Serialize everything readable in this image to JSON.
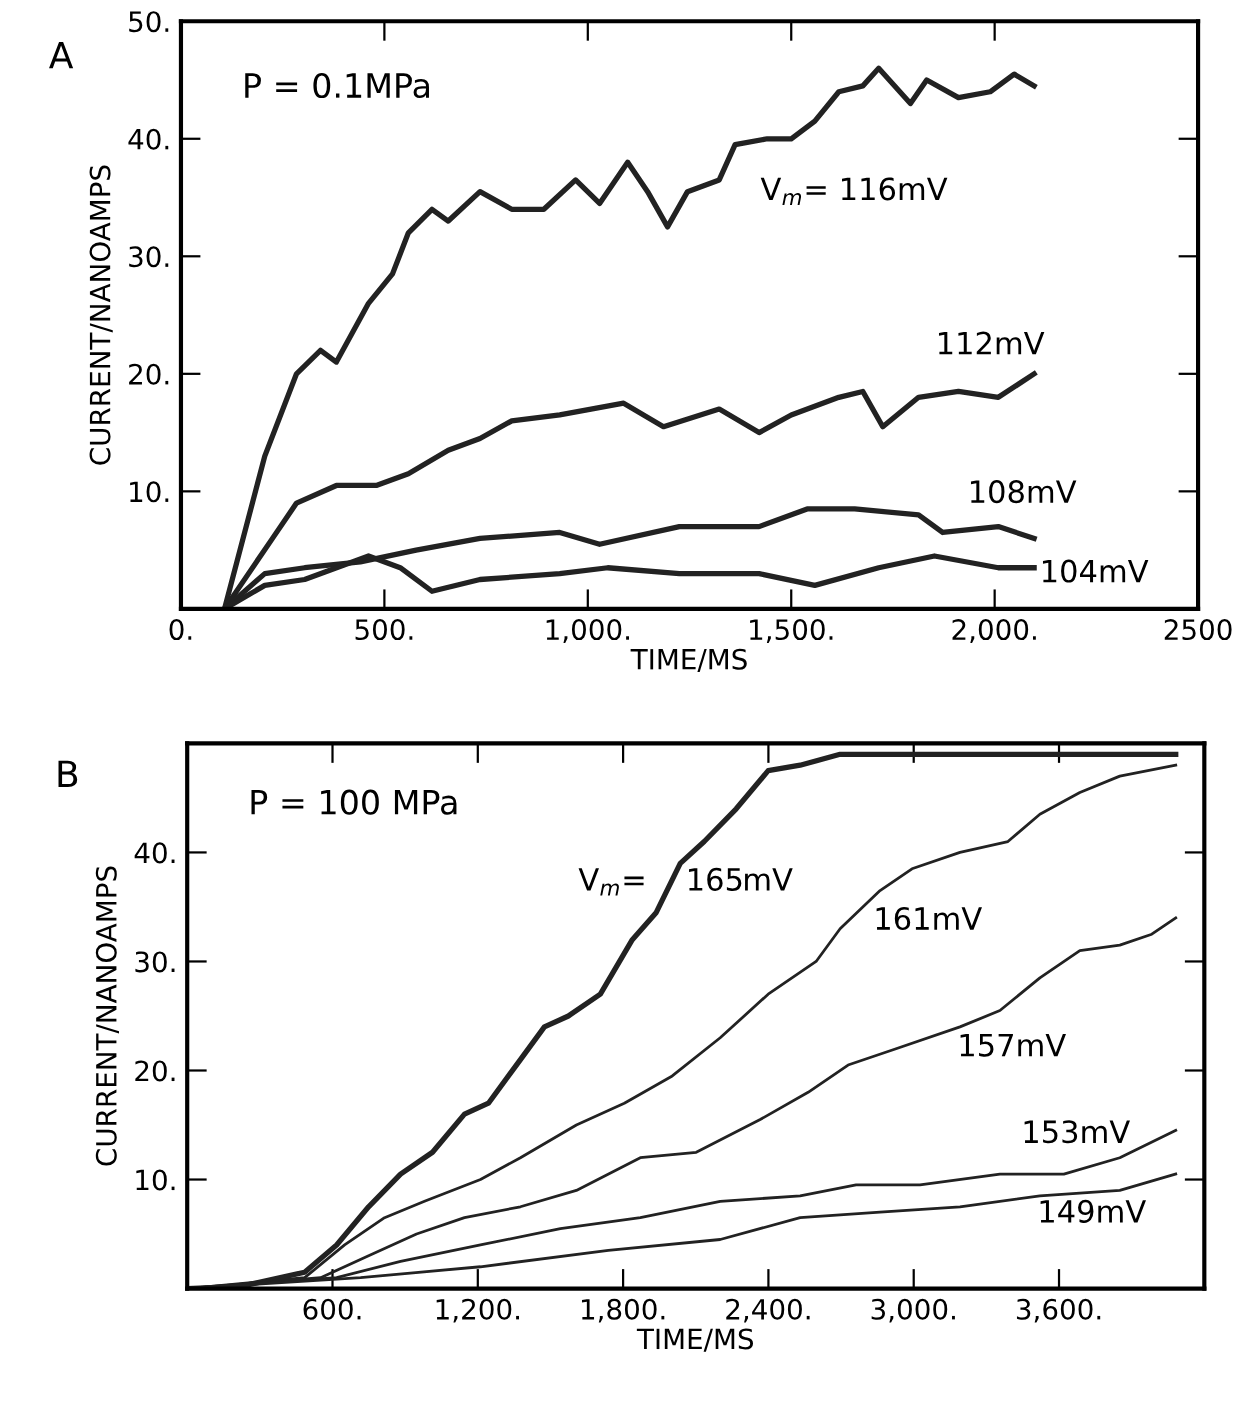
{
  "chart_data": [
    {
      "type": "line",
      "title": "A",
      "xlabel": "TIME/MS",
      "ylabel": "CURRENT/NANOAMPS",
      "xlim": [
        0,
        2500
      ],
      "ylim": [
        0,
        50
      ],
      "xticks": [
        {
          "value": 0,
          "label": "0."
        },
        {
          "value": 500,
          "label": "500."
        },
        {
          "value": 1000,
          "label": "1,000."
        },
        {
          "value": 1500,
          "label": "1,500."
        },
        {
          "value": 2000,
          "label": "2,000."
        },
        2500
      ],
      "yticks": [
        {
          "value": 0,
          "label": null
        },
        {
          "value": 10,
          "label": "10."
        },
        {
          "value": 20,
          "label": "20."
        },
        {
          "value": 30,
          "label": "30."
        },
        {
          "value": 40,
          "label": "40."
        },
        {
          "value": 50,
          "label": "50."
        }
      ],
      "grid": false,
      "legend": false,
      "line_style": "solid",
      "marker": "none",
      "annotations": [
        "P = 0.1MPa"
      ],
      "series": [
        {
          "name": "V$_{m}$= 116mV",
          "color": "#222222",
          "x": [
            107,
            206,
            284,
            343,
            382,
            461,
            520,
            559,
            617,
            657,
            735,
            813,
            892,
            970,
            1029,
            1098,
            1147,
            1196,
            1245,
            1323,
            1362,
            1441,
            1500,
            1558,
            1617,
            1676,
            1715,
            1793,
            1833,
            1911,
            1989,
            2048,
            2097
          ],
          "values": [
            0,
            13,
            20,
            22,
            21,
            26,
            28.5,
            32,
            34,
            33,
            35.5,
            34,
            34,
            36.5,
            34.5,
            38,
            35.5,
            32.5,
            35.5,
            36.5,
            39.5,
            40,
            40,
            41.5,
            44,
            44.5,
            46,
            43,
            45,
            43.5,
            44,
            45.5,
            44.5
          ]
        },
        {
          "name": "112mV",
          "color": "#222222",
          "x": [
            107,
            225,
            284,
            382,
            480,
            559,
            657,
            735,
            813,
            931,
            1088,
            1186,
            1323,
            1421,
            1500,
            1617,
            1676,
            1725,
            1813,
            1911,
            2009,
            2097
          ],
          "values": [
            0,
            6,
            9,
            10.5,
            10.5,
            11.5,
            13.5,
            14.5,
            16,
            16.5,
            17.5,
            15.5,
            17,
            15,
            16.5,
            18,
            18.5,
            15.5,
            18,
            18.5,
            18,
            20
          ]
        },
        {
          "name": "108mV",
          "color": "#222222",
          "x": [
            107,
            206,
            304,
            441,
            578,
            735,
            931,
            1029,
            1225,
            1421,
            1539,
            1656,
            1813,
            1872,
            2009,
            2097
          ],
          "values": [
            0,
            3,
            3.5,
            4,
            5,
            6,
            6.5,
            5.5,
            7,
            7,
            8.5,
            8.5,
            8,
            6.5,
            7,
            6
          ]
        },
        {
          "name": "104mV",
          "color": "#222222",
          "x": [
            107,
            206,
            304,
            461,
            539,
            617,
            735,
            931,
            1049,
            1225,
            1421,
            1558,
            1715,
            1852,
            2009,
            2097
          ],
          "values": [
            0,
            2,
            2.5,
            4.5,
            3.5,
            1.5,
            2.5,
            3,
            3.5,
            3,
            3,
            2,
            3.5,
            4.5,
            3.5,
            3.5
          ]
        }
      ]
    },
    {
      "type": "line",
      "title": "B",
      "xlabel": "TIME/MS",
      "ylabel": "CURRENT/NANOAMPS",
      "xlim": [
        0,
        4200
      ],
      "ylim": [
        0,
        50
      ],
      "xticks": [
        {
          "value": 600,
          "label": "600."
        },
        {
          "value": 1200,
          "label": "1,200."
        },
        {
          "value": 1800,
          "label": "1,800."
        },
        {
          "value": 2400,
          "label": "2,400."
        },
        {
          "value": 3000,
          "label": "3,000."
        },
        {
          "value": 3600,
          "label": "3,600."
        }
      ],
      "yticks": [
        {
          "value": 10,
          "label": "10."
        },
        {
          "value": 20,
          "label": "20."
        },
        {
          "value": 30,
          "label": "30."
        },
        {
          "value": 40,
          "label": "40."
        }
      ],
      "grid": false,
      "legend": false,
      "line_style": "solid",
      "marker": "none",
      "annotations": [
        "P = 100 MPa"
      ],
      "series": [
        {
          "name": "V$_{m}$=    165mV",
          "color": "#222222",
          "x": [
            0,
            221,
            485,
            617,
            749,
            881,
            1013,
            1145,
            1244,
            1376,
            1475,
            1574,
            1706,
            1838,
            1937,
            2036,
            2135,
            2267,
            2399,
            2531,
            2696,
            4082
          ],
          "values": [
            0,
            0.2,
            1.5,
            4,
            7.5,
            10.5,
            12.5,
            16,
            17,
            21,
            24,
            25,
            27,
            32,
            34.5,
            39,
            41,
            44,
            47.5,
            48,
            49,
            49
          ]
        },
        {
          "name": "161mV",
          "color": "#222222",
          "x": [
            0,
            485,
            650,
            815,
            980,
            1211,
            1376,
            1607,
            1805,
            2003,
            2201,
            2399,
            2597,
            2696,
            2861,
            2993,
            3191,
            3389,
            3521,
            3686,
            3851,
            4082
          ],
          "values": [
            0,
            1,
            4,
            6.5,
            8,
            10,
            12,
            15,
            17,
            19.5,
            23,
            27,
            30,
            33,
            36.5,
            38.5,
            40,
            41,
            43.5,
            45.5,
            47,
            48
          ]
        },
        {
          "name": "157mV",
          "color": "#222222",
          "x": [
            0,
            551,
            749,
            947,
            1145,
            1376,
            1607,
            1871,
            2102,
            2366,
            2564,
            2729,
            2927,
            3191,
            3356,
            3521,
            3686,
            3851,
            3983,
            4082
          ],
          "values": [
            0,
            1,
            3,
            5,
            6.5,
            7.5,
            9,
            12,
            12.5,
            15.5,
            18,
            20.5,
            22,
            24,
            25.5,
            28.5,
            31,
            31.5,
            32.5,
            34
          ]
        },
        {
          "name": "153mV",
          "color": "#222222",
          "x": [
            0,
            617,
            881,
            1211,
            1541,
            1871,
            2201,
            2531,
            2762,
            3026,
            3356,
            3620,
            3851,
            4082
          ],
          "values": [
            0,
            1,
            2.5,
            4,
            5.5,
            6.5,
            8,
            8.5,
            9.5,
            9.5,
            10.5,
            10.5,
            12,
            14.5
          ]
        },
        {
          "name": "149mV",
          "color": "#222222",
          "x": [
            0,
            716,
            1211,
            1739,
            2201,
            2531,
            2861,
            3191,
            3521,
            3851,
            4082
          ],
          "values": [
            0,
            1,
            2,
            3.5,
            4.5,
            6.5,
            7,
            7.5,
            8.5,
            9,
            10.5
          ]
        }
      ]
    }
  ]
}
